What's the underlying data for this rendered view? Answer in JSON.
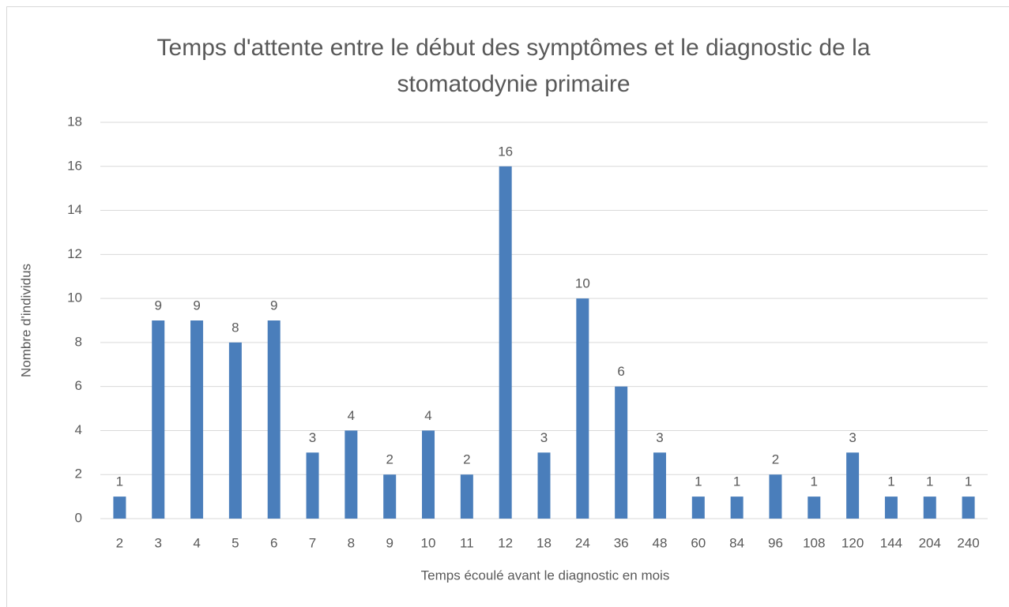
{
  "chart_data": {
    "type": "bar",
    "title": "Temps d'attente entre le début des symptômes et le diagnostic de la stomatodynie primaire",
    "x_label": "Temps écoulé avant le diagnostic en mois",
    "y_label": "Nombre d'individus",
    "categories": [
      "2",
      "3",
      "4",
      "5",
      "6",
      "7",
      "8",
      "9",
      "10",
      "11",
      "12",
      "18",
      "24",
      "36",
      "48",
      "60",
      "84",
      "96",
      "108",
      "120",
      "144",
      "204",
      "240"
    ],
    "values": [
      1,
      9,
      9,
      8,
      9,
      3,
      4,
      2,
      4,
      2,
      16,
      3,
      10,
      6,
      3,
      1,
      1,
      2,
      1,
      3,
      1,
      1,
      1
    ],
    "color": "#4a7ebb",
    "ylim": [
      0,
      18
    ],
    "yticks": [
      0,
      2,
      4,
      6,
      8,
      10,
      12,
      14,
      16,
      18
    ],
    "grid": true
  }
}
